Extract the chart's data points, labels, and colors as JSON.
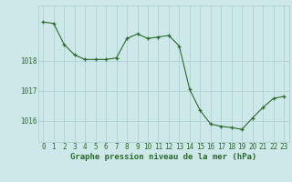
{
  "hours": [
    0,
    1,
    2,
    3,
    4,
    5,
    6,
    7,
    8,
    9,
    10,
    11,
    12,
    13,
    14,
    15,
    16,
    17,
    18,
    19,
    20,
    21,
    22,
    23
  ],
  "pressure": [
    1019.3,
    1019.25,
    1018.55,
    1018.2,
    1018.05,
    1018.05,
    1018.05,
    1018.1,
    1018.75,
    1018.9,
    1018.75,
    1018.8,
    1018.85,
    1018.5,
    1017.05,
    1016.35,
    1015.9,
    1015.82,
    1015.78,
    1015.72,
    1016.1,
    1016.45,
    1016.75,
    1016.82
  ],
  "line_color": "#2d6a2d",
  "marker": "+",
  "bg_color": "#cce8e8",
  "grid_color": "#aacece",
  "tick_label_color": "#2d6a2d",
  "xlabel": "Graphe pression niveau de la mer (hPa)",
  "xlabel_color": "#2d6a2d",
  "yticks": [
    1016,
    1017,
    1018
  ],
  "ylim": [
    1015.3,
    1019.85
  ],
  "xlim": [
    -0.5,
    23.5
  ],
  "font_size_axis": 5.5,
  "font_size_xlabel": 6.5
}
